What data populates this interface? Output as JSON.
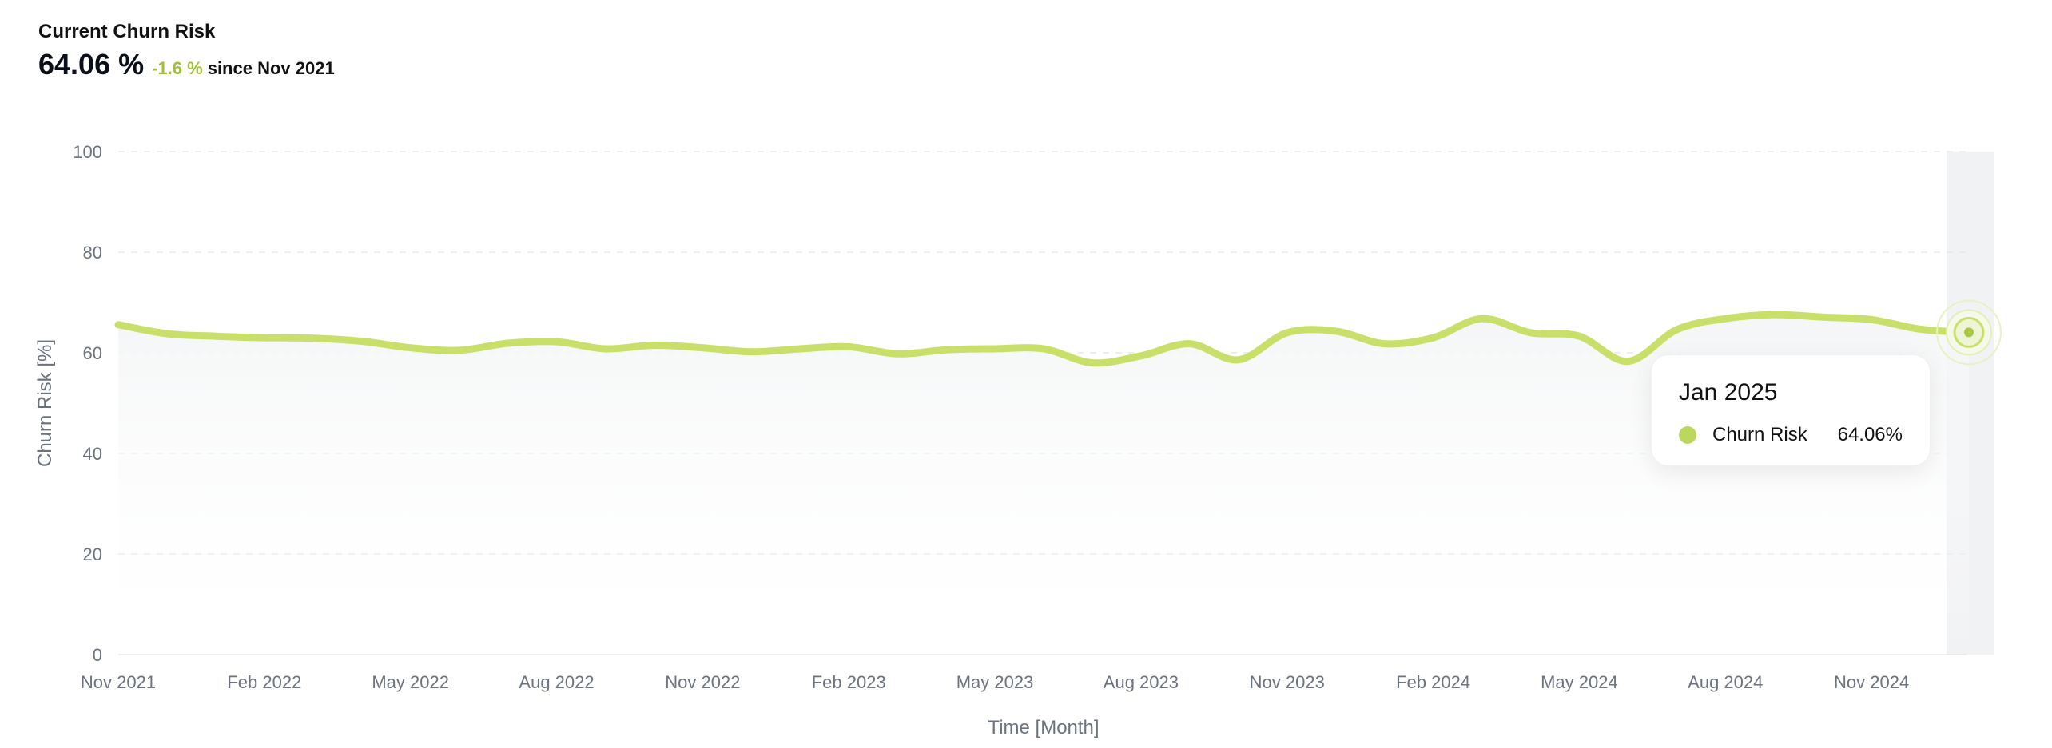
{
  "kpi": {
    "title": "Current Churn Risk",
    "value": "64.06 %",
    "delta": "-1.6 %",
    "since": "since Nov 2021"
  },
  "colors": {
    "line": "#c8e06a",
    "delta": "#9dc138",
    "highlight_band": "#f1f2f4"
  },
  "tooltip": {
    "date": "Jan 2025",
    "series_name": "Churn Risk",
    "value": "64.06%"
  },
  "chart_data": {
    "type": "line",
    "xlabel": "Time [Month]",
    "ylabel": "Churn Risk [%]",
    "ylim": [
      0,
      100
    ],
    "yticks": [
      0,
      20,
      40,
      60,
      80,
      100
    ],
    "grid": true,
    "x_tick_labels": [
      "Nov 2021",
      "Feb 2022",
      "May 2022",
      "Aug 2022",
      "Nov 2022",
      "Feb 2023",
      "May 2023",
      "Aug 2023",
      "Nov 2023",
      "Feb 2024",
      "May 2024",
      "Aug 2024",
      "Nov 2024"
    ],
    "x": [
      "Nov 2021",
      "Dec 2021",
      "Jan 2022",
      "Feb 2022",
      "Mar 2022",
      "Apr 2022",
      "May 2022",
      "Jun 2022",
      "Jul 2022",
      "Aug 2022",
      "Sep 2022",
      "Oct 2022",
      "Nov 2022",
      "Dec 2022",
      "Jan 2023",
      "Feb 2023",
      "Mar 2023",
      "Apr 2023",
      "May 2023",
      "Jun 2023",
      "Jul 2023",
      "Aug 2023",
      "Sep 2023",
      "Oct 2023",
      "Nov 2023",
      "Dec 2023",
      "Jan 2024",
      "Feb 2024",
      "Mar 2024",
      "Apr 2024",
      "May 2024",
      "Jun 2024",
      "Jul 2024",
      "Aug 2024",
      "Sep 2024",
      "Oct 2024",
      "Nov 2024",
      "Dec 2024",
      "Jan 2025"
    ],
    "series": [
      {
        "values": [
          65.6,
          63.8,
          63.3,
          63.0,
          62.9,
          62.3,
          61.0,
          60.5,
          61.9,
          62.2,
          60.8,
          61.5,
          61.0,
          60.2,
          60.8,
          61.2,
          59.8,
          60.6,
          60.8,
          60.8,
          58.0,
          59.4,
          61.8,
          58.6,
          64.0,
          64.3,
          61.8,
          63.0,
          66.8,
          64.0,
          63.3,
          58.3,
          64.6,
          66.8,
          67.6,
          67.1,
          66.6,
          64.7,
          64.06
        ]
      }
    ],
    "highlighted_point": "Jan 2025"
  }
}
